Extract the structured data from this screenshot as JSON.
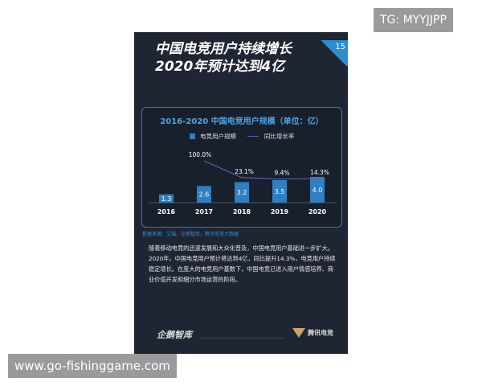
{
  "watermark_top": "TG: MYYJJPP",
  "watermark_bottom": "www.go-fishinggame.com",
  "card": {
    "title_line1": "中国电竞用户持续增长",
    "title_line2": "2020年预计达到4亿",
    "page_number": "15",
    "source": "数据来源：艾瑞，企鹅智库，腾讯电竞大数据",
    "body": "随着移动电竞的迅速发展和大众化普及，中国电竞用户基础进一步扩大。2020年，中国电竞用户预计将达到4亿，同比提升14.3%，电竞用户持续稳定增长。在庞大的电竞用户基数下，中国电竞已进入用户情感培养、商业价值开发和细分市场运营的阶段。",
    "logo_left": "企鹅智库",
    "logo_right": "腾讯电竞"
  },
  "chart_data": {
    "type": "bar",
    "title": "2016-2020 中国电竞用户规模（单位：亿）",
    "categories": [
      "2016",
      "2017",
      "2018",
      "2019",
      "2020"
    ],
    "series": [
      {
        "name": "电竞用户规模",
        "type": "bar",
        "values": [
          1.3,
          2.6,
          3.2,
          3.5,
          4.0
        ],
        "labels": [
          "1.3",
          "2.6",
          "3.2",
          "3.5",
          "4.0"
        ],
        "color": "#2f7fc1"
      },
      {
        "name": "同比增长率",
        "type": "line",
        "values": [
          null,
          100.0,
          23.1,
          9.4,
          14.3
        ],
        "labels": [
          "",
          "100.0%",
          "23.1%",
          "9.4%",
          "14.3%"
        ],
        "color": "#5b5fb8"
      }
    ],
    "legend": "top"
  }
}
